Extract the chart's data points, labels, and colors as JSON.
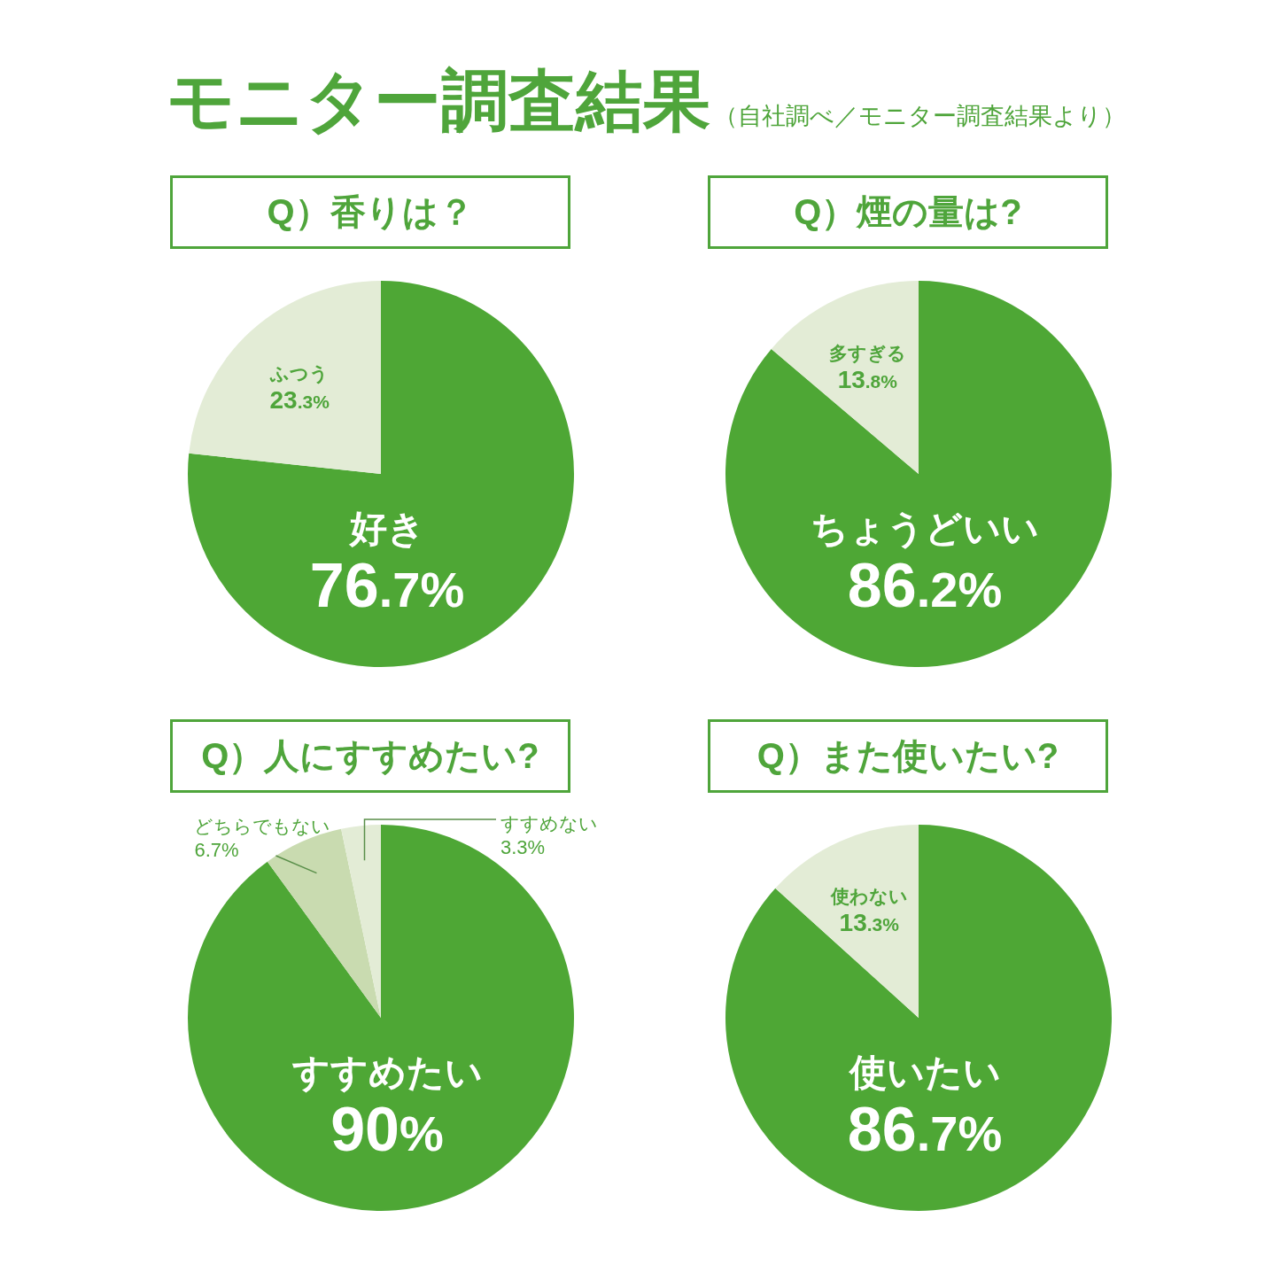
{
  "chart_data": [
    {
      "type": "other",
      "title": "モニター調査結果",
      "subtitle": "（自社調べ／モニター調査結果より）"
    },
    {
      "type": "pie",
      "title": "Q）香りは？",
      "categories": [
        "好き",
        "ふつう"
      ],
      "values": [
        76.7,
        23.3
      ],
      "colors": [
        "#4ea735",
        "#e3ecd6"
      ],
      "value_labels": [
        "76.7%",
        "23.3%"
      ]
    },
    {
      "type": "pie",
      "title": "Q）煙の量は?",
      "categories": [
        "ちょうどいい",
        "多すぎる"
      ],
      "values": [
        86.2,
        13.8
      ],
      "colors": [
        "#4ea735",
        "#e3ecd6"
      ],
      "value_labels": [
        "86.2%",
        "13.8%"
      ]
    },
    {
      "type": "pie",
      "title": "Q）人にすすめたい?",
      "categories": [
        "すすめたい",
        "どちらでもない",
        "すすめない"
      ],
      "values": [
        90,
        6.7,
        3.3
      ],
      "colors": [
        "#4ea735",
        "#c9dbb0",
        "#e3ecd6"
      ],
      "value_labels": [
        "90%",
        "6.7%",
        "3.3%"
      ]
    },
    {
      "type": "pie",
      "title": "Q）また使いたい?",
      "categories": [
        "使いたい",
        "使わない"
      ],
      "values": [
        86.7,
        13.3
      ],
      "colors": [
        "#4ea735",
        "#e3ecd6"
      ],
      "value_labels": [
        "86.7%",
        "13.3%"
      ]
    }
  ]
}
